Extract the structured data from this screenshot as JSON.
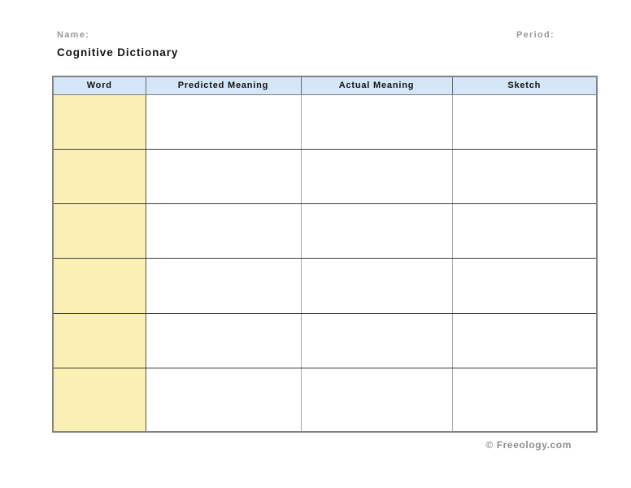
{
  "header": {
    "name_label": "Name:",
    "period_label": "Period:",
    "title": "Cognitive Dictionary"
  },
  "table": {
    "columns": [
      {
        "label": "Word"
      },
      {
        "label": "Predicted Meaning"
      },
      {
        "label": "Actual Meaning"
      },
      {
        "label": "Sketch"
      }
    ],
    "row_count": 6,
    "rows": [
      [
        "",
        "",
        "",
        ""
      ],
      [
        "",
        "",
        "",
        ""
      ],
      [
        "",
        "",
        "",
        ""
      ],
      [
        "",
        "",
        "",
        ""
      ],
      [
        "",
        "",
        "",
        ""
      ],
      [
        "",
        "",
        "",
        ""
      ]
    ]
  },
  "footer": {
    "credit": "© Freeology.com"
  },
  "colors": {
    "header_row_bg": "#d4e6f7",
    "word_column_bg": "#fbf0b3",
    "muted_label": "#9a9a9a",
    "footer_text": "#8f8f8f",
    "title_text": "#141414"
  }
}
